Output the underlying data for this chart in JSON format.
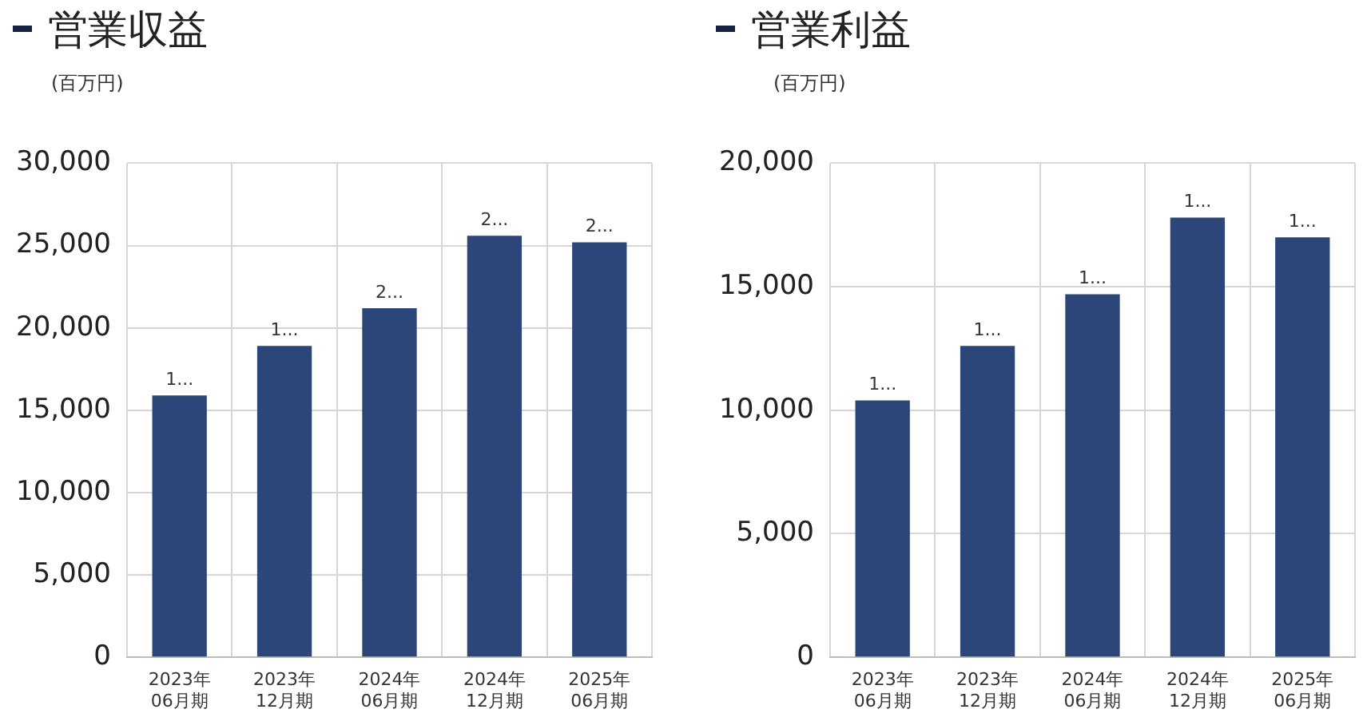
{
  "chart_data": [
    {
      "type": "bar",
      "title": "営業収益",
      "ylabel": "(百万円)",
      "categories": [
        "2023年06月期",
        "2023年12月期",
        "2024年06月期",
        "2024年12月期",
        "2025年06月期"
      ],
      "values": [
        15900,
        18900,
        21200,
        25600,
        25200
      ],
      "value_labels": [
        "1...",
        "1...",
        "2...",
        "2...",
        "2..."
      ],
      "color": "#2c467a",
      "ylim": [
        0,
        30000
      ],
      "yticks": [
        0,
        {
          "value": 5000,
          "label": "5,000"
        },
        {
          "value": 10000,
          "label": "10,000"
        },
        {
          "value": 15000,
          "label": "15,000"
        },
        {
          "value": 20000,
          "label": "20,000"
        },
        {
          "value": 25000,
          "label": "25,000"
        },
        {
          "value": 30000,
          "label": "30,000"
        }
      ],
      "grid": true
    },
    {
      "type": "bar",
      "title": "営業利益",
      "ylabel": "(百万円)",
      "categories": [
        "2023年06月期",
        "2023年12月期",
        "2024年06月期",
        "2024年12月期",
        "2025年06月期"
      ],
      "values": [
        10400,
        12600,
        14700,
        17800,
        17000
      ],
      "value_labels": [
        "1...",
        "1...",
        "1...",
        "1...",
        "1..."
      ],
      "color": "#2c467a",
      "ylim": [
        0,
        20000
      ],
      "yticks": [
        0,
        {
          "value": 5000,
          "label": "5,000"
        },
        {
          "value": 10000,
          "label": "10,000"
        },
        {
          "value": 15000,
          "label": "15,000"
        },
        {
          "value": 20000,
          "label": "20,000"
        }
      ],
      "grid": true
    }
  ]
}
